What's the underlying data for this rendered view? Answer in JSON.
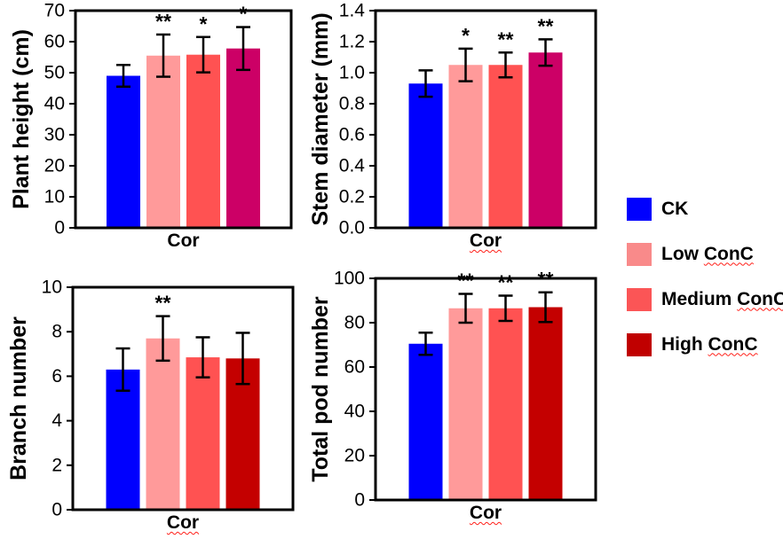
{
  "chart_data": {
    "type": "bar",
    "description": "Four-panel bar figure with error bars and significance asterisks",
    "x_category": "Cor",
    "panels": [
      {
        "id": "plant-height",
        "ylabel": "Plant height (cm)",
        "xlabel": "Cor",
        "xlabel_squiggle": false,
        "ylim": [
          0,
          70
        ],
        "yticks": [
          "0",
          "10",
          "20",
          "30",
          "40",
          "50",
          "60",
          "70"
        ],
        "bars": [
          {
            "group": "CK",
            "value": 49.0,
            "err": 3.5,
            "sig": "",
            "color": "#0000fe"
          },
          {
            "group": "Low ConC",
            "value": 55.5,
            "err": 6.8,
            "sig": "**",
            "color": "#ff9a9a"
          },
          {
            "group": "Medium ConC",
            "value": 55.8,
            "err": 5.7,
            "sig": "*",
            "color": "#ff5252"
          },
          {
            "group": "High ConC",
            "value": 57.8,
            "err": 6.9,
            "sig": "*",
            "color": "#cc0066"
          }
        ]
      },
      {
        "id": "stem-diameter",
        "ylabel": "Stem diameter (mm)",
        "xlabel": "Cor",
        "xlabel_squiggle": true,
        "ylim": [
          0,
          1.4
        ],
        "yticks": [
          "0.0",
          "0.2",
          "0.4",
          "0.6",
          "0.8",
          "1.0",
          "1.2",
          "1.4"
        ],
        "bars": [
          {
            "group": "CK",
            "value": 0.93,
            "err": 0.085,
            "sig": "",
            "color": "#0000fe"
          },
          {
            "group": "Low ConC",
            "value": 1.05,
            "err": 0.105,
            "sig": "*",
            "color": "#ff9a9a"
          },
          {
            "group": "Medium ConC",
            "value": 1.05,
            "err": 0.08,
            "sig": "**",
            "color": "#ff5252"
          },
          {
            "group": "High ConC",
            "value": 1.13,
            "err": 0.085,
            "sig": "**",
            "color": "#cc0066"
          }
        ]
      },
      {
        "id": "branch-number",
        "ylabel": "Branch number",
        "xlabel": "Cor",
        "xlabel_squiggle": true,
        "ylim": [
          0,
          10
        ],
        "yticks": [
          "0",
          "2",
          "4",
          "6",
          "8",
          "10"
        ],
        "bars": [
          {
            "group": "CK",
            "value": 6.3,
            "err": 0.95,
            "sig": "",
            "color": "#0000fe"
          },
          {
            "group": "Low ConC",
            "value": 7.7,
            "err": 1.0,
            "sig": "**",
            "color": "#ff9a9a"
          },
          {
            "group": "Medium ConC",
            "value": 6.85,
            "err": 0.9,
            "sig": "",
            "color": "#ff5252"
          },
          {
            "group": "High ConC",
            "value": 6.8,
            "err": 1.15,
            "sig": "",
            "color": "#c40000"
          }
        ]
      },
      {
        "id": "total-pod-number",
        "ylabel": "Total pod number",
        "xlabel": "Cor",
        "xlabel_squiggle": true,
        "ylim": [
          0,
          100
        ],
        "yticks": [
          "0",
          "20",
          "40",
          "60",
          "80",
          "100"
        ],
        "bars": [
          {
            "group": "CK",
            "value": 70.5,
            "err": 5.0,
            "sig": "",
            "color": "#0000fe"
          },
          {
            "group": "Low ConC",
            "value": 86.5,
            "err": 6.5,
            "sig": "**",
            "color": "#ff9a9a"
          },
          {
            "group": "Medium ConC",
            "value": 86.5,
            "err": 5.7,
            "sig": "**",
            "color": "#ff5252"
          },
          {
            "group": "High ConC",
            "value": 87.0,
            "err": 6.7,
            "sig": "**",
            "color": "#c40000"
          }
        ]
      }
    ],
    "legend": {
      "position": "right",
      "entries": [
        {
          "label": "CK",
          "text_plain": "CK",
          "text_squiggle": "",
          "color": "#0000fe"
        },
        {
          "label": "Low ConC",
          "text_plain": "Low ",
          "text_squiggle": "ConC",
          "color": "#f98a8a"
        },
        {
          "label": "Medium ConC",
          "text_plain": "Medium ",
          "text_squiggle": "ConC",
          "color": "#fb5556"
        },
        {
          "label": "High ConC",
          "text_plain": "High ",
          "text_squiggle": "ConC",
          "color": "#c00000"
        }
      ]
    },
    "style": {
      "axis_color": "#000000",
      "error_bar_color": "#000000",
      "squiggle_color": "#ff2019",
      "background": "#ffffff"
    }
  }
}
